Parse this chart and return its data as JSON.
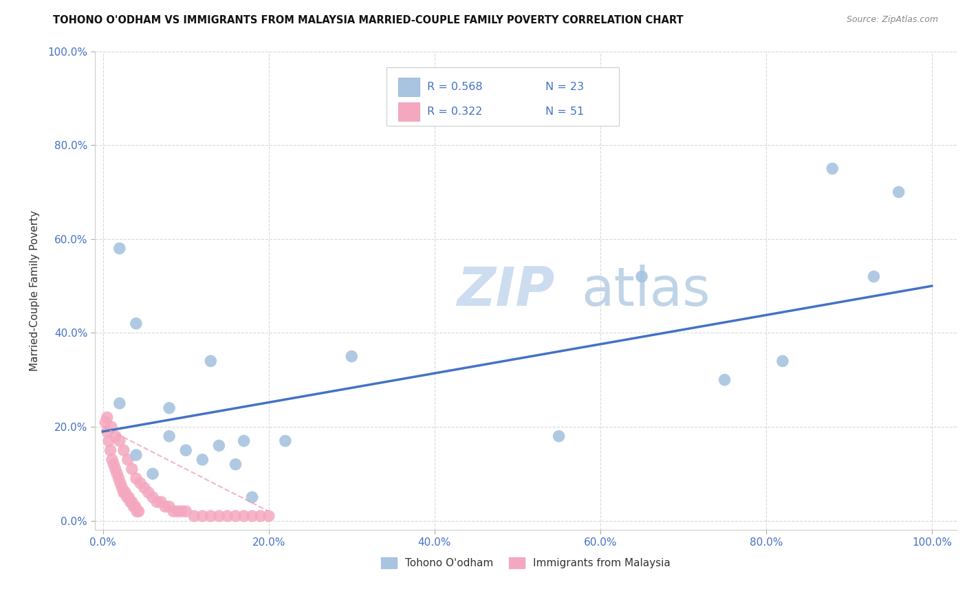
{
  "title": "TOHONO O'ODHAM VS IMMIGRANTS FROM MALAYSIA MARRIED-COUPLE FAMILY POVERTY CORRELATION CHART",
  "source": "Source: ZipAtlas.com",
  "ylabel": "Married-Couple Family Poverty",
  "x_tick_labels": [
    "0.0%",
    "20.0%",
    "40.0%",
    "60.0%",
    "80.0%",
    "100.0%"
  ],
  "x_tick_positions": [
    0,
    20,
    40,
    60,
    80,
    100
  ],
  "y_tick_labels": [
    "0.0%",
    "20.0%",
    "40.0%",
    "60.0%",
    "80.0%",
    "100.0%"
  ],
  "y_tick_positions": [
    0,
    20,
    40,
    60,
    80,
    100
  ],
  "xlim": [
    -1,
    103
  ],
  "ylim": [
    -2,
    92
  ],
  "legend_label1": "Tohono O'odham",
  "legend_label2": "Immigrants from Malaysia",
  "R1": 0.568,
  "N1": 23,
  "R2": 0.322,
  "N2": 51,
  "color_blue": "#a8c4e0",
  "color_pink": "#f4a8c0",
  "color_blue_line": "#4472c4",
  "color_text_blue": "#4472c4",
  "color_grid": "#d8d8d8",
  "tohono_x": [
    2,
    4,
    8,
    13,
    17,
    22,
    30,
    55,
    65,
    75,
    82,
    88,
    93,
    96,
    2,
    4,
    6,
    8,
    10,
    12,
    14,
    16,
    18
  ],
  "tohono_y": [
    58,
    42,
    24,
    34,
    17,
    17,
    35,
    18,
    52,
    30,
    34,
    75,
    52,
    70,
    25,
    14,
    10,
    18,
    15,
    13,
    16,
    12,
    5
  ],
  "malaysia_x": [
    0.5,
    1.0,
    1.5,
    2.0,
    2.5,
    3.0,
    3.5,
    4.0,
    4.5,
    5.0,
    5.5,
    6.0,
    6.5,
    7.0,
    7.5,
    8.0,
    8.5,
    9.0,
    9.5,
    10.0,
    11.0,
    12.0,
    13.0,
    14.0,
    15.0,
    16.0,
    17.0,
    18.0,
    19.0,
    20.0,
    0.3,
    0.5,
    0.7,
    0.9,
    1.1,
    1.3,
    1.5,
    1.7,
    1.9,
    2.1,
    2.3,
    2.5,
    2.7,
    2.9,
    3.1,
    3.3,
    3.5,
    3.7,
    3.9,
    4.1,
    4.3
  ],
  "malaysia_y": [
    22,
    20,
    18,
    17,
    15,
    13,
    11,
    9,
    8,
    7,
    6,
    5,
    4,
    4,
    3,
    3,
    2,
    2,
    2,
    2,
    1,
    1,
    1,
    1,
    1,
    1,
    1,
    1,
    1,
    1,
    21,
    19,
    17,
    15,
    13,
    12,
    11,
    10,
    9,
    8,
    7,
    6,
    6,
    5,
    5,
    4,
    4,
    3,
    3,
    2,
    2
  ],
  "blue_line_x0": 0,
  "blue_line_y0": 19,
  "blue_line_x1": 100,
  "blue_line_y1": 50,
  "pink_line_x0": 0,
  "pink_line_y0": 20,
  "pink_line_x1": 20,
  "pink_line_y1": 2
}
